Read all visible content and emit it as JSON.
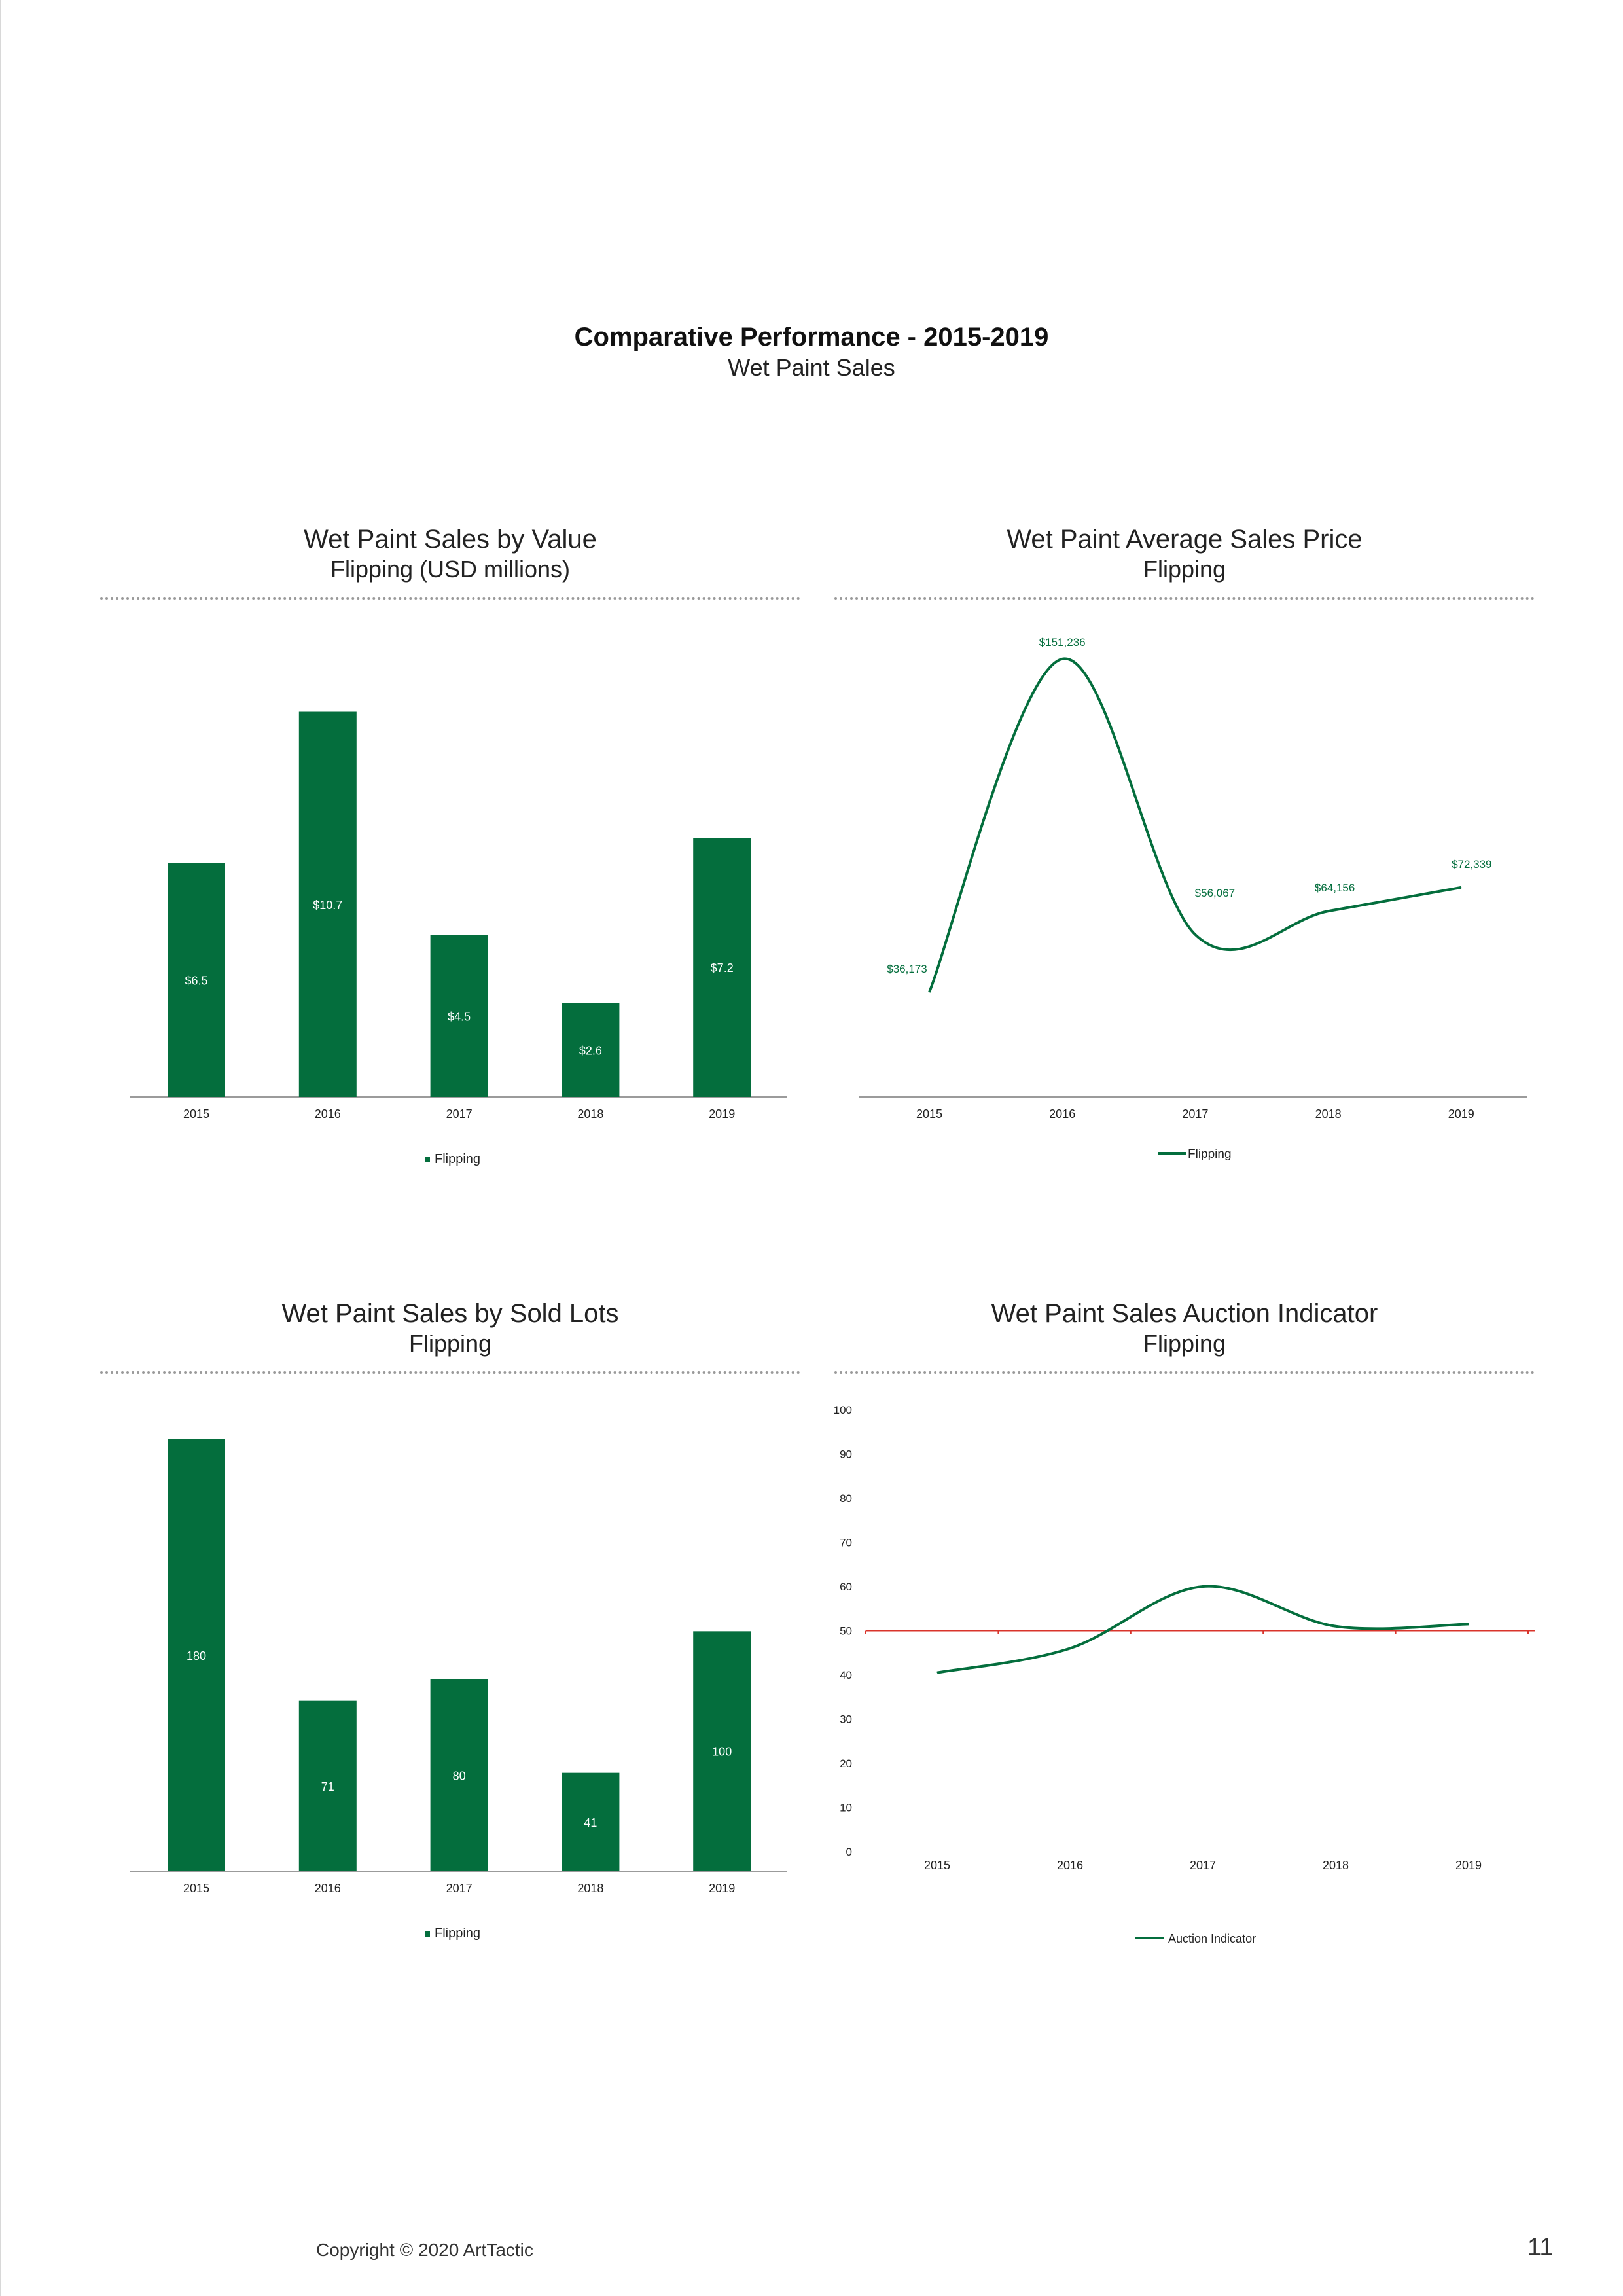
{
  "page": {
    "title": "Comparative Performance - 2015-2019",
    "subtitle": "Wet Paint Sales",
    "copyright": "Copyright © 2020 ArtTactic",
    "page_number": "11"
  },
  "colors": {
    "green": "#046e3d",
    "red": "#d9342b",
    "axis": "#9b9b9b",
    "text": "#222222"
  },
  "chart_data": [
    {
      "id": "value",
      "type": "bar",
      "title": "Wet Paint Sales by Value",
      "subtitle": "Flipping (USD millions)",
      "categories": [
        "2015",
        "2016",
        "2017",
        "2018",
        "2019"
      ],
      "series": [
        {
          "name": "Flipping",
          "values": [
            6.5,
            10.7,
            4.5,
            2.6,
            7.2
          ]
        }
      ],
      "data_labels": [
        "$6.5",
        "$10.7",
        "$4.5",
        "$2.6",
        "$7.2"
      ],
      "ylim": [
        0,
        12
      ],
      "legend": "bottom",
      "grid": false
    },
    {
      "id": "avgprice",
      "type": "line",
      "title": "Wet Paint Average Sales Price",
      "subtitle": "Flipping",
      "categories": [
        "2015",
        "2016",
        "2017",
        "2018",
        "2019"
      ],
      "series": [
        {
          "name": "Flipping",
          "values": [
            36173,
            151236,
            56067,
            64156,
            72339
          ]
        }
      ],
      "data_labels": [
        "$36,173",
        "$151,236",
        "$56,067",
        "$64,156",
        "$72,339"
      ],
      "ylim": [
        0,
        160000
      ],
      "legend": "bottom",
      "grid": false
    },
    {
      "id": "lots",
      "type": "bar",
      "title": "Wet Paint Sales by Sold Lots",
      "subtitle": "Flipping",
      "categories": [
        "2015",
        "2016",
        "2017",
        "2018",
        "2019"
      ],
      "series": [
        {
          "name": "Flipping",
          "values": [
            180,
            71,
            80,
            41,
            100
          ]
        }
      ],
      "data_labels": [
        "180",
        "71",
        "80",
        "41",
        "100"
      ],
      "ylim": [
        0,
        180
      ],
      "legend": "bottom",
      "grid": false
    },
    {
      "id": "indicator",
      "type": "line",
      "title": "Wet Paint Sales Auction Indicator",
      "subtitle": "Flipping",
      "categories": [
        "2015",
        "2016",
        "2017",
        "2018",
        "2019"
      ],
      "series": [
        {
          "name": "Auction Indicator",
          "values": [
            40.5,
            46,
            60,
            51,
            51.5
          ]
        }
      ],
      "reference_line": 50,
      "ylim": [
        0,
        100
      ],
      "yticks": [
        "0",
        "10",
        "20",
        "30",
        "40",
        "50",
        "60",
        "70",
        "80",
        "90",
        "100"
      ],
      "legend": "bottom",
      "grid": false
    }
  ]
}
